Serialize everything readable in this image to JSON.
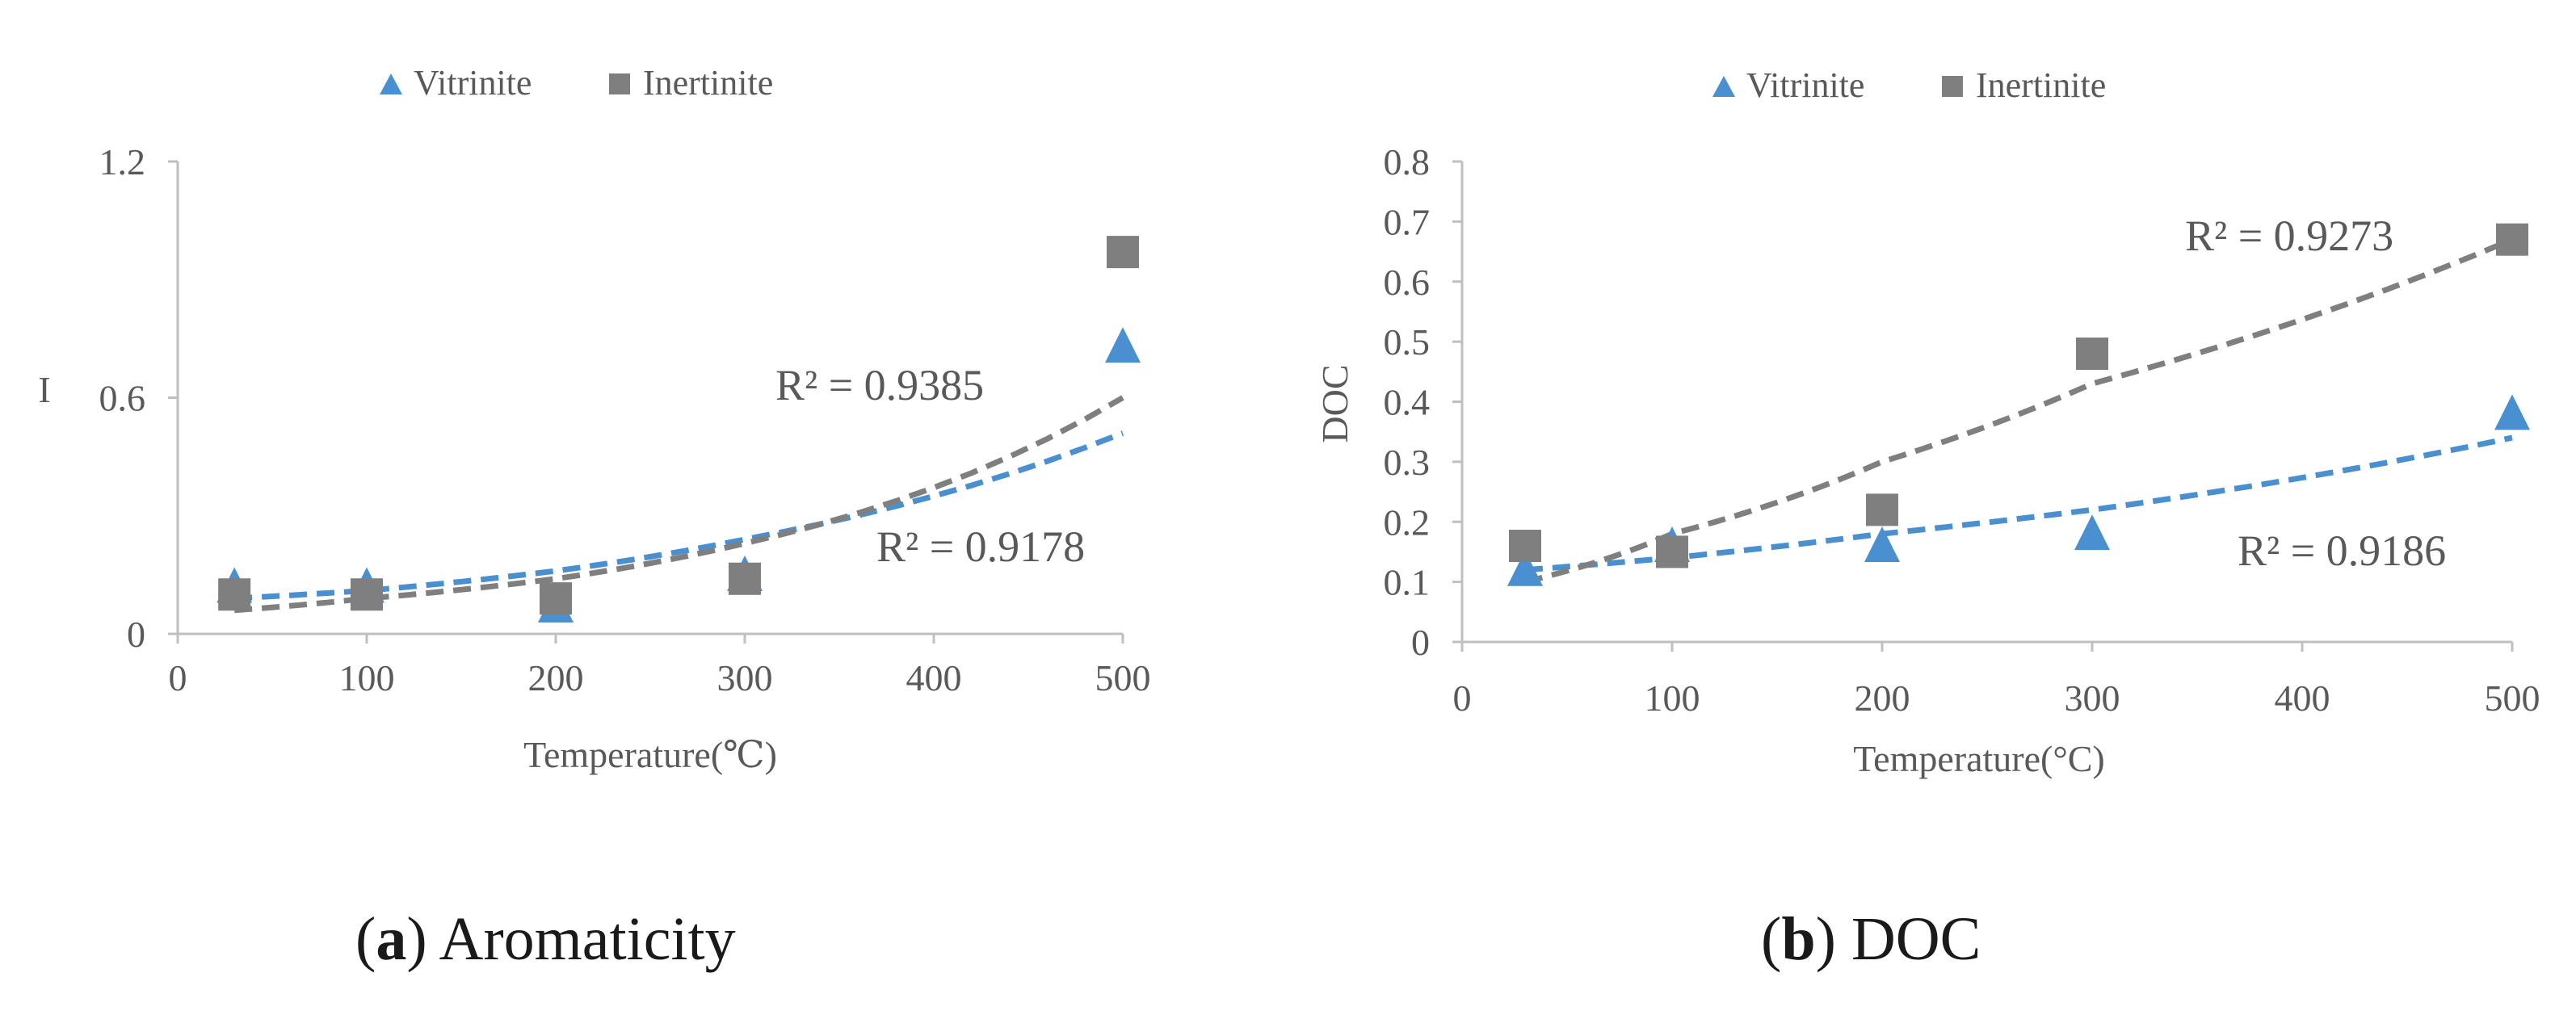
{
  "colors": {
    "vitrinite": "#4a90d0",
    "inertinite": "#7f7f7f",
    "axis": "#bfbfbf",
    "text": "#595959"
  },
  "captions": [
    {
      "letter": "a",
      "text": "Aromaticity"
    },
    {
      "letter": "b",
      "text": "DOC"
    }
  ],
  "chart_data": [
    {
      "type": "scatter",
      "panel": "a",
      "title": "",
      "xlabel": "Temperature(℃)",
      "ylabel": "I",
      "xlim": [
        0,
        500
      ],
      "ylim": [
        0,
        1.2
      ],
      "xticks": [
        "0",
        "100",
        "200",
        "300",
        "400",
        "500"
      ],
      "yticks": [
        "0",
        "0.6",
        "1.2"
      ],
      "legend": [
        "Vitrinite",
        "Inertinite"
      ],
      "series": [
        {
          "name": "Vitrinite",
          "marker": "triangle",
          "x": [
            30,
            100,
            200,
            300,
            500
          ],
          "y": [
            0.12,
            0.12,
            0.07,
            0.15,
            0.73
          ],
          "trend": "exponential",
          "trend_y": [
            0.09,
            0.11,
            0.16,
            0.24,
            0.51
          ],
          "r2_label": "R² = 0.9178"
        },
        {
          "name": "Inertinite",
          "marker": "square",
          "x": [
            30,
            100,
            200,
            300,
            500
          ],
          "y": [
            0.1,
            0.1,
            0.09,
            0.14,
            0.97
          ],
          "trend": "exponential",
          "trend_y": [
            0.06,
            0.09,
            0.14,
            0.23,
            0.6
          ],
          "r2_label": "R² = 0.9385"
        }
      ]
    },
    {
      "type": "scatter",
      "panel": "b",
      "title": "",
      "xlabel": "Temperature(°C)",
      "ylabel": "DOC",
      "xlim": [
        0,
        500
      ],
      "ylim": [
        0,
        0.8
      ],
      "xticks": [
        "0",
        "100",
        "200",
        "300",
        "400",
        "500"
      ],
      "yticks": [
        "0",
        "0.1",
        "0.2",
        "0.3",
        "0.4",
        "0.5",
        "0.6",
        "0.7",
        "0.8"
      ],
      "legend": [
        "Vitrinite",
        "Inertinite"
      ],
      "series": [
        {
          "name": "Vitrinite",
          "marker": "triangle",
          "x": [
            30,
            100,
            200,
            300,
            500
          ],
          "y": [
            0.12,
            0.16,
            0.16,
            0.18,
            0.38
          ],
          "trend": "exponential",
          "trend_y": [
            0.12,
            0.14,
            0.18,
            0.22,
            0.34
          ],
          "r2_label": "R² = 0.9186"
        },
        {
          "name": "Inertinite",
          "marker": "square",
          "x": [
            30,
            100,
            200,
            300,
            500
          ],
          "y": [
            0.16,
            0.15,
            0.22,
            0.48,
            0.67
          ],
          "trend": "exponential",
          "trend_y": [
            0.1,
            0.18,
            0.3,
            0.43,
            0.67
          ],
          "r2_label": "R² = 0.9273"
        }
      ]
    }
  ]
}
